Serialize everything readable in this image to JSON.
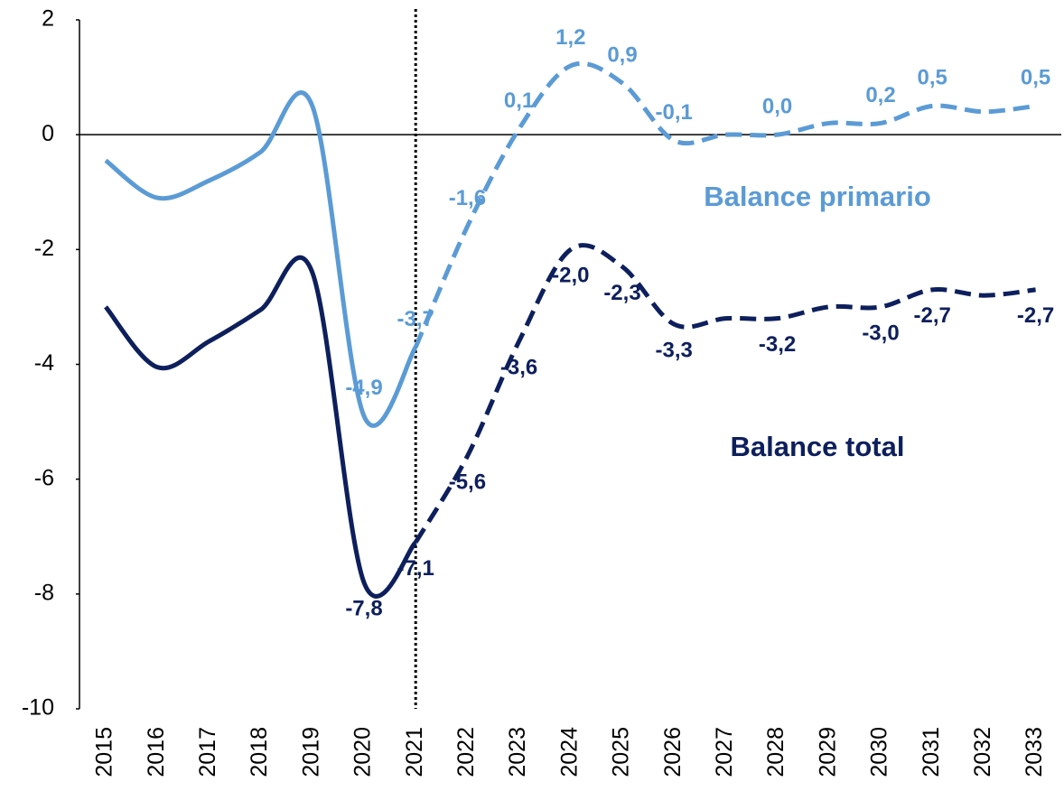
{
  "chart_data": {
    "type": "line",
    "categories": [
      "2015",
      "2016",
      "2017",
      "2018",
      "2019",
      "2020",
      "2021",
      "2022",
      "2023",
      "2024",
      "2025",
      "2026",
      "2027",
      "2028",
      "2029",
      "2030",
      "2031",
      "2032",
      "2033"
    ],
    "forecast_from": "2021",
    "ylim": [
      -10,
      2
    ],
    "yticks": [
      -10,
      -8,
      -6,
      -4,
      -2,
      0,
      2
    ],
    "series": [
      {
        "name": "Balance primario",
        "color": "#5b9bd5",
        "values": [
          -0.45,
          -1.1,
          -0.8,
          -0.3,
          0.5,
          -4.9,
          -3.7,
          -1.6,
          0.1,
          1.2,
          0.9,
          -0.1,
          0.0,
          0.0,
          0.2,
          0.2,
          0.5,
          0.4,
          0.5
        ],
        "value_labels": [
          null,
          null,
          null,
          null,
          null,
          "-4,9",
          "-3,7",
          "-1,6",
          "0,1",
          "1,2",
          "0,9",
          "-0,1",
          null,
          "0,0",
          null,
          "0,2",
          "0,5",
          null,
          "0,5"
        ]
      },
      {
        "name": "Balance total",
        "color": "#0d1f5c",
        "values": [
          -3.0,
          -4.05,
          -3.6,
          -3.05,
          -2.4,
          -7.8,
          -7.1,
          -5.6,
          -3.6,
          -2.0,
          -2.3,
          -3.3,
          -3.2,
          -3.2,
          -3.0,
          -3.0,
          -2.7,
          -2.8,
          -2.7
        ],
        "value_labels": [
          null,
          null,
          null,
          null,
          null,
          "-7,8",
          "-7,1",
          "-5,6",
          "-3,6",
          "-2,0",
          "-2,3",
          "-3,3",
          null,
          "-3,2",
          null,
          "-3,0",
          "-2,7",
          null,
          "-2,7"
        ]
      }
    ]
  }
}
